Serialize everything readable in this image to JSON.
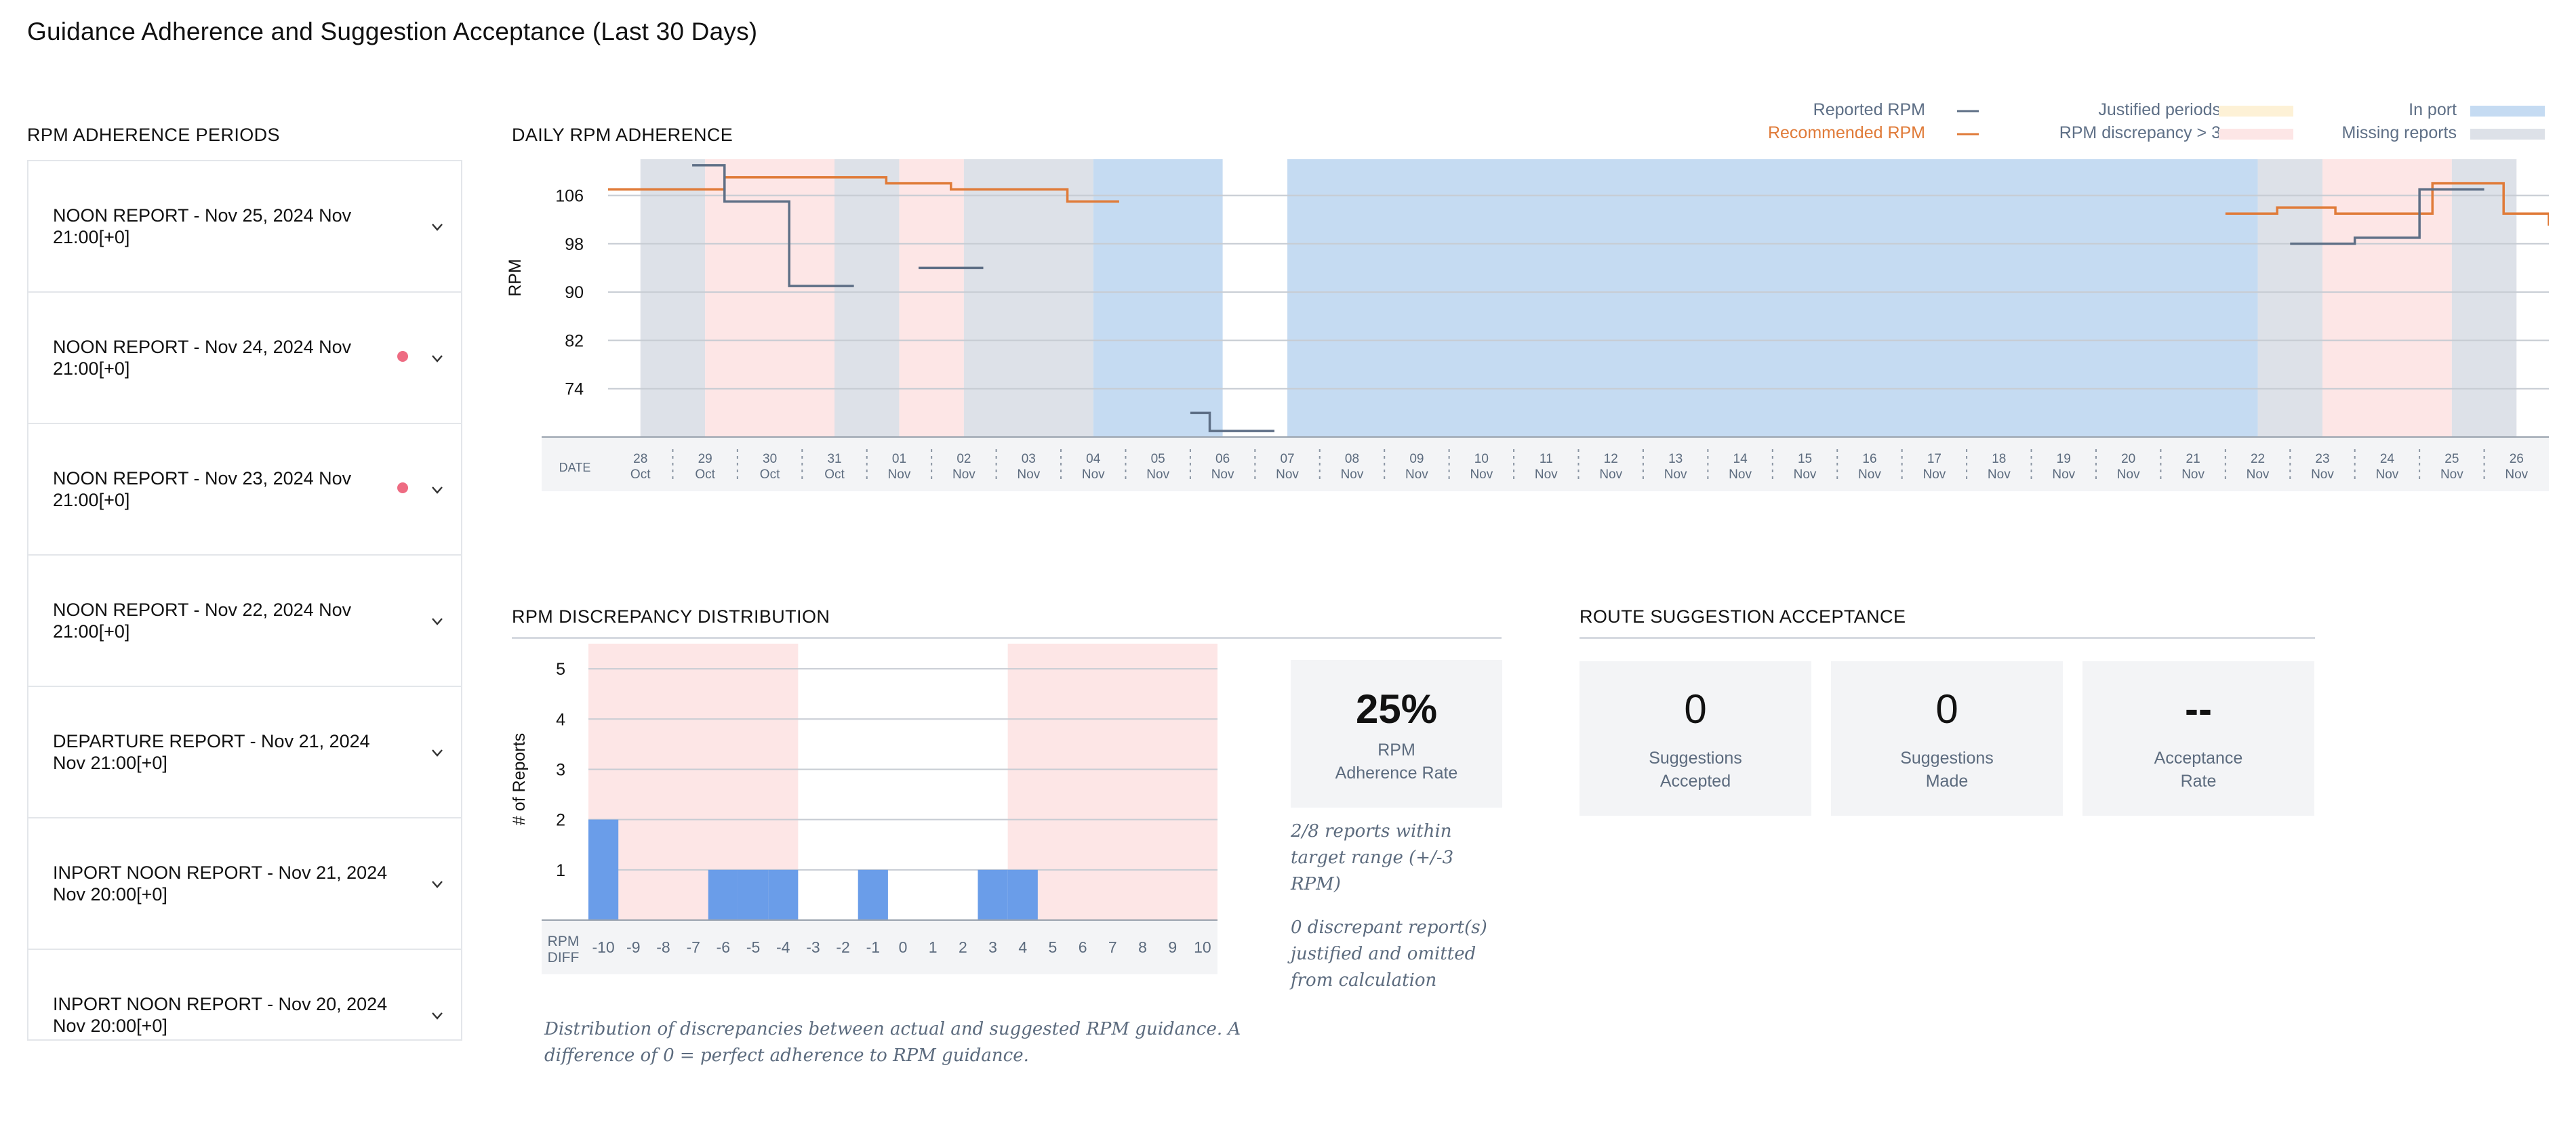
{
  "page_title": "Guidance Adherence and Suggestion Acceptance (Last 30 Days)",
  "left_panel": {
    "title": "RPM ADHERENCE PERIODS",
    "reports": [
      {
        "label": "NOON REPORT - Nov 25, 2024 Nov 21:00[+0]",
        "flagged": false
      },
      {
        "label": "NOON REPORT - Nov 24, 2024 Nov 21:00[+0]",
        "flagged": true
      },
      {
        "label": "NOON REPORT - Nov 23, 2024 Nov 21:00[+0]",
        "flagged": true
      },
      {
        "label": "NOON REPORT - Nov 22, 2024 Nov 21:00[+0]",
        "flagged": false
      },
      {
        "label": "DEPARTURE REPORT - Nov 21, 2024 Nov 21:00[+0]",
        "flagged": false
      },
      {
        "label": "INPORT NOON REPORT - Nov 21, 2024 Nov 20:00[+0]",
        "flagged": false
      },
      {
        "label": "INPORT NOON REPORT - Nov 20, 2024 Nov 20:00[+0]",
        "flagged": false
      }
    ]
  },
  "colors": {
    "reported": "#5e6f86",
    "recommended": "#e07b39",
    "justified": "#fdf1d6",
    "discrepancy": "#fde6e6",
    "in_port": "#c5dbf2",
    "missing": "#dde1e8",
    "bar": "#6a9de9",
    "flag_dot": "#ee6b82"
  },
  "legend": {
    "reported": "Reported RPM",
    "recommended": "Recommended RPM",
    "justified": "Justified periods",
    "discrepancy": "RPM discrepancy > 3",
    "in_port": "In port",
    "missing": "Missing reports"
  },
  "chart_data": [
    {
      "type": "line",
      "title": "DAILY RPM ADHERENCE",
      "ylabel": "RPM",
      "xlabel": "DATE",
      "yticks": [
        74,
        82,
        90,
        98,
        106
      ],
      "ylim": [
        66,
        112
      ],
      "x_days": [
        {
          "d": "28",
          "m": "Oct"
        },
        {
          "d": "29",
          "m": "Oct"
        },
        {
          "d": "30",
          "m": "Oct"
        },
        {
          "d": "31",
          "m": "Oct"
        },
        {
          "d": "01",
          "m": "Nov"
        },
        {
          "d": "02",
          "m": "Nov"
        },
        {
          "d": "03",
          "m": "Nov"
        },
        {
          "d": "04",
          "m": "Nov"
        },
        {
          "d": "05",
          "m": "Nov"
        },
        {
          "d": "06",
          "m": "Nov"
        },
        {
          "d": "07",
          "m": "Nov"
        },
        {
          "d": "08",
          "m": "Nov"
        },
        {
          "d": "09",
          "m": "Nov"
        },
        {
          "d": "10",
          "m": "Nov"
        },
        {
          "d": "11",
          "m": "Nov"
        },
        {
          "d": "12",
          "m": "Nov"
        },
        {
          "d": "13",
          "m": "Nov"
        },
        {
          "d": "14",
          "m": "Nov"
        },
        {
          "d": "15",
          "m": "Nov"
        },
        {
          "d": "16",
          "m": "Nov"
        },
        {
          "d": "17",
          "m": "Nov"
        },
        {
          "d": "18",
          "m": "Nov"
        },
        {
          "d": "19",
          "m": "Nov"
        },
        {
          "d": "20",
          "m": "Nov"
        },
        {
          "d": "21",
          "m": "Nov"
        },
        {
          "d": "22",
          "m": "Nov"
        },
        {
          "d": "23",
          "m": "Nov"
        },
        {
          "d": "24",
          "m": "Nov"
        },
        {
          "d": "25",
          "m": "Nov"
        },
        {
          "d": "26",
          "m": "Nov"
        }
      ],
      "bands": [
        {
          "kind": "missing",
          "from": "28 Oct",
          "to": "29 Oct"
        },
        {
          "kind": "discrepancy",
          "from": "29 Oct",
          "to": "31 Oct"
        },
        {
          "kind": "missing",
          "from": "31 Oct",
          "to": "01 Nov"
        },
        {
          "kind": "discrepancy",
          "from": "01 Nov",
          "to": "02 Nov"
        },
        {
          "kind": "missing",
          "from": "02 Nov",
          "to": "04 Nov"
        },
        {
          "kind": "in_port",
          "from": "04 Nov",
          "to": "06 Nov"
        },
        {
          "kind": "in_port",
          "from": "07 Nov",
          "to": "22 Nov"
        },
        {
          "kind": "missing",
          "from": "22 Nov",
          "to": "23 Nov"
        },
        {
          "kind": "discrepancy",
          "from": "23 Nov",
          "to": "25 Nov"
        },
        {
          "kind": "missing",
          "from": "25 Nov",
          "to": "26 Nov"
        }
      ],
      "series": [
        {
          "name": "Recommended RPM",
          "segments": [
            [
              [
                -0.5,
                107
              ],
              [
                1.3,
                107
              ],
              [
                1.3,
                109
              ],
              [
                3.8,
                109
              ],
              [
                3.8,
                108
              ],
              [
                4.8,
                108
              ],
              [
                4.8,
                107
              ],
              [
                6.6,
                107
              ],
              [
                6.6,
                105
              ],
              [
                7.4,
                105
              ]
            ],
            [
              [
                24.5,
                103
              ],
              [
                25.3,
                103
              ],
              [
                25.3,
                104
              ],
              [
                26.2,
                104
              ],
              [
                26.2,
                103
              ],
              [
                27.7,
                103
              ],
              [
                27.7,
                108
              ],
              [
                28.8,
                108
              ],
              [
                28.8,
                103
              ],
              [
                29.7,
                103
              ],
              [
                29.7,
                101
              ]
            ]
          ]
        },
        {
          "name": "Reported RPM",
          "segments": [
            [
              [
                0.8,
                111
              ],
              [
                1.3,
                111
              ],
              [
                1.3,
                105
              ],
              [
                2.3,
                105
              ],
              [
                2.3,
                91
              ],
              [
                3.3,
                91
              ]
            ],
            [
              [
                4.3,
                94
              ],
              [
                5.3,
                94
              ]
            ],
            [
              [
                8.5,
                70
              ],
              [
                8.8,
                70
              ],
              [
                8.8,
                67
              ],
              [
                9.8,
                67
              ]
            ],
            [
              [
                25.5,
                98
              ],
              [
                26.5,
                98
              ],
              [
                26.5,
                99
              ],
              [
                27.5,
                99
              ],
              [
                27.5,
                107
              ],
              [
                28.5,
                107
              ]
            ]
          ]
        }
      ]
    },
    {
      "type": "bar",
      "title": "RPM DISCREPANCY DISTRIBUTION",
      "ylabel": "# of Reports",
      "xlabel": "RPM DIFF",
      "categories": [
        "-10",
        "-9",
        "-8",
        "-7",
        "-6",
        "-5",
        "-4",
        "-3",
        "-2",
        "-1",
        "0",
        "1",
        "2",
        "3",
        "4",
        "5",
        "6",
        "7",
        "8",
        "9",
        "10"
      ],
      "values": [
        2,
        0,
        0,
        0,
        1,
        1,
        1,
        0,
        0,
        1,
        0,
        0,
        0,
        1,
        1,
        0,
        0,
        0,
        0,
        0,
        0
      ],
      "ylim": [
        0,
        5.5
      ],
      "yticks": [
        1,
        2,
        3,
        4,
        5
      ]
    }
  ],
  "adherence": {
    "value": "25%",
    "label_line1": "RPM",
    "label_line2": "Adherence Rate",
    "note1": "2/8 reports within target range (+/-3 RPM)",
    "note2": "0 discrepant report(s) justified and omitted from calculation",
    "caption": "Distribution of discrepancies between actual and suggested RPM guidance. A difference of 0 = perfect adherence to RPM guidance."
  },
  "route": {
    "title": "ROUTE SUGGESTION ACCEPTANCE",
    "cards": [
      {
        "value": "0",
        "line1": "Suggestions",
        "line2": "Accepted"
      },
      {
        "value": "0",
        "line1": "Suggestions",
        "line2": "Made"
      },
      {
        "value": "--",
        "line1": "Acceptance",
        "line2": "Rate"
      }
    ]
  }
}
